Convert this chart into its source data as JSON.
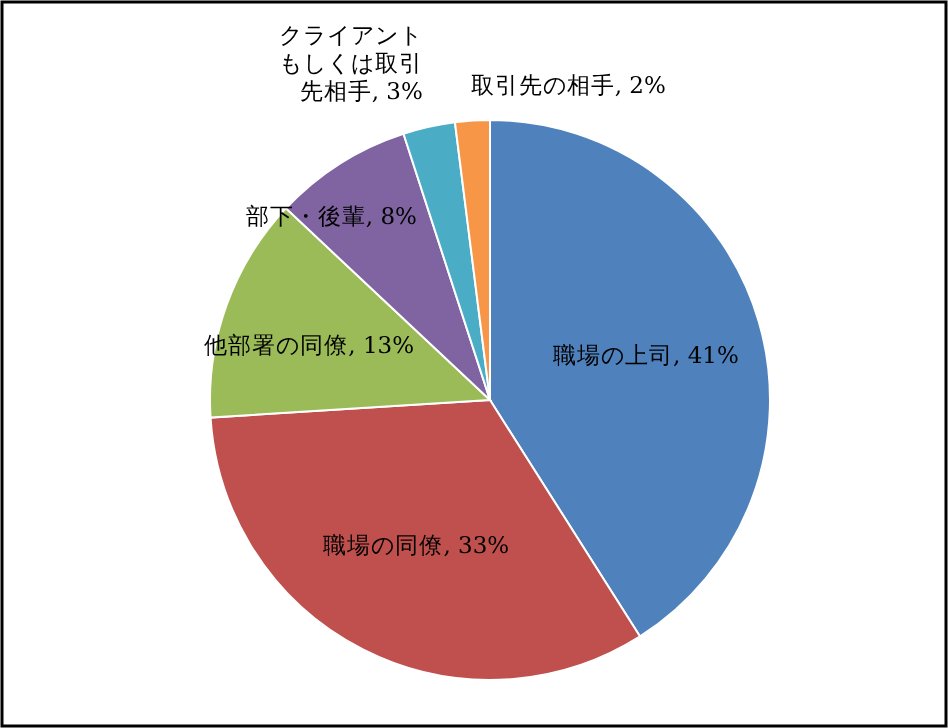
{
  "chart_data": {
    "type": "pie",
    "categories": [
      "職場の上司",
      "職場の同僚",
      "他部署の同僚",
      "部下・後輩",
      "クライアントもしくは取引先相手",
      "取引先の相手"
    ],
    "values": [
      41,
      33,
      13,
      8,
      3,
      2
    ],
    "value_labels": [
      "41%",
      "33%",
      "13%",
      "8%",
      "3%",
      "2%"
    ],
    "colors": [
      "#4f81bd",
      "#c0504d",
      "#9bbb59",
      "#8064a2",
      "#4bacc6",
      "#f79646"
    ]
  }
}
